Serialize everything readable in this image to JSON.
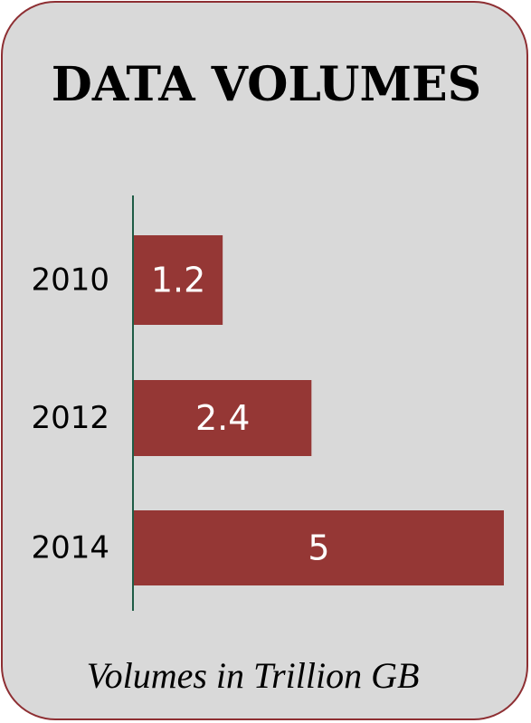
{
  "chart_data": {
    "type": "bar",
    "orientation": "horizontal",
    "title": "DATA VOLUMES",
    "categories": [
      "2010",
      "2012",
      "2014"
    ],
    "values": [
      1.2,
      2.4,
      5
    ],
    "data_labels": [
      "1.2",
      "2.4",
      "5"
    ],
    "footnote": "Volumes in Trillion GB",
    "xlim": [
      0,
      5
    ],
    "grid": false,
    "legend": "none",
    "colors": {
      "bar": "#953735",
      "axis": "#1f5c45",
      "label": "#ffffff",
      "background": "#d9d9d9",
      "border": "#8e2f33"
    }
  }
}
